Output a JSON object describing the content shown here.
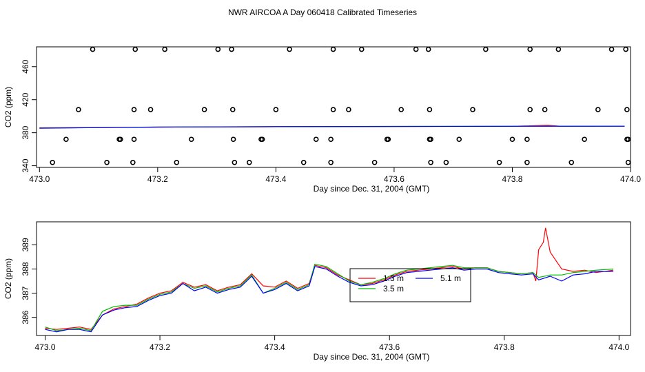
{
  "title": "NWR AIRCOA A  Day 060418  Calibrated Timeseries",
  "colors": {
    "red": "#ff0000",
    "green": "#00bb00",
    "blue": "#0000ff",
    "black": "#000000"
  },
  "chart_data": [
    {
      "type": "scatter",
      "xlabel": "Day since Dec. 31, 2004 (GMT)",
      "ylabel": "CO2 (ppm)",
      "xlim": [
        472.995,
        474.0
      ],
      "ylim": [
        338,
        484
      ],
      "xticks": [
        "473.0",
        "473.2",
        "473.4",
        "473.6",
        "473.8",
        "474.0"
      ],
      "yticks": [
        "340",
        "380",
        "420",
        "460"
      ],
      "series": [
        {
          "color": "#000000",
          "marker": "circle",
          "points": [
            [
              473.09,
              481
            ],
            [
              473.162,
              481
            ],
            [
              473.212,
              481
            ],
            [
              473.302,
              481
            ],
            [
              473.325,
              481
            ],
            [
              473.423,
              481
            ],
            [
              473.497,
              481
            ],
            [
              473.545,
              481
            ],
            [
              473.637,
              481
            ],
            [
              473.658,
              481
            ],
            [
              473.755,
              481
            ],
            [
              473.83,
              481
            ],
            [
              473.878,
              481
            ],
            [
              473.968,
              481
            ],
            [
              473.992,
              481
            ],
            [
              473.066,
              408
            ],
            [
              473.16,
              408
            ],
            [
              473.188,
              408
            ],
            [
              473.279,
              408
            ],
            [
              473.327,
              408
            ],
            [
              473.4,
              408
            ],
            [
              473.497,
              408
            ],
            [
              473.523,
              408
            ],
            [
              473.612,
              408
            ],
            [
              473.66,
              408
            ],
            [
              473.733,
              408
            ],
            [
              473.83,
              408
            ],
            [
              473.855,
              408
            ],
            [
              473.945,
              408
            ],
            [
              473.994,
              408
            ],
            [
              473.045,
              372
            ],
            [
              473.135,
              372
            ],
            [
              473.137,
              372
            ],
            [
              473.16,
              372
            ],
            [
              473.257,
              372
            ],
            [
              473.328,
              372
            ],
            [
              473.375,
              372
            ],
            [
              473.377,
              372
            ],
            [
              473.468,
              372
            ],
            [
              473.493,
              372
            ],
            [
              473.588,
              372
            ],
            [
              473.59,
              372
            ],
            [
              473.66,
              372
            ],
            [
              473.662,
              372
            ],
            [
              473.71,
              372
            ],
            [
              473.8,
              372
            ],
            [
              473.825,
              372
            ],
            [
              473.922,
              372
            ],
            [
              473.994,
              372
            ],
            [
              473.996,
              372
            ],
            [
              473.022,
              344
            ],
            [
              473.114,
              344
            ],
            [
              473.158,
              344
            ],
            [
              473.232,
              344
            ],
            [
              473.33,
              344
            ],
            [
              473.355,
              344
            ],
            [
              473.447,
              344
            ],
            [
              473.493,
              344
            ],
            [
              473.567,
              344
            ],
            [
              473.662,
              344
            ],
            [
              473.688,
              344
            ],
            [
              473.778,
              344
            ],
            [
              473.825,
              344
            ],
            [
              473.9,
              344
            ],
            [
              473.996,
              344
            ]
          ]
        },
        {
          "color": "#ff0000",
          "marker": "line",
          "points": [
            [
              473.0,
              386
            ],
            [
              473.2,
              386.8
            ],
            [
              473.4,
              387.3
            ],
            [
              473.6,
              387.6
            ],
            [
              473.8,
              387.8
            ],
            [
              473.86,
              389
            ],
            [
              473.88,
              388
            ],
            [
              473.99,
              387.9
            ]
          ]
        },
        {
          "color": "#00bb00",
          "marker": "line",
          "points": [
            [
              473.0,
              385.6
            ],
            [
              473.2,
              386.9
            ],
            [
              473.4,
              387.4
            ],
            [
              473.6,
              387.6
            ],
            [
              473.8,
              387.9
            ],
            [
              473.99,
              388
            ]
          ]
        },
        {
          "color": "#0000ff",
          "marker": "line",
          "points": [
            [
              473.0,
              385.5
            ],
            [
              473.2,
              386.8
            ],
            [
              473.4,
              387.3
            ],
            [
              473.6,
              387.5
            ],
            [
              473.8,
              387.8
            ],
            [
              473.99,
              387.9
            ]
          ]
        }
      ]
    },
    {
      "type": "line",
      "xlabel": "Day since Dec. 31, 2004 (GMT)",
      "ylabel": "CO2 (ppm)",
      "xlim": [
        472.985,
        474.02
      ],
      "ylim": [
        385.25,
        389.95
      ],
      "xticks": [
        "473.0",
        "473.2",
        "473.4",
        "473.6",
        "473.8",
        "474.0"
      ],
      "yticks": [
        "386",
        "387",
        "388",
        "389"
      ],
      "legend": {
        "position": "center",
        "entries": [
          {
            "label": "1.3 m",
            "color": "#ff0000"
          },
          {
            "label": "5.1 m",
            "color": "#0000ff"
          },
          {
            "label": "3.5 m",
            "color": "#00bb00"
          }
        ]
      },
      "series": [
        {
          "name": "1.3 m",
          "color": "#ff0000",
          "points": [
            [
              473.0,
              385.55
            ],
            [
              473.02,
              385.5
            ],
            [
              473.04,
              385.55
            ],
            [
              473.06,
              385.6
            ],
            [
              473.08,
              385.5
            ],
            [
              473.09,
              385.8
            ],
            [
              473.1,
              386.1
            ],
            [
              473.12,
              386.35
            ],
            [
              473.14,
              386.45
            ],
            [
              473.16,
              386.55
            ],
            [
              473.18,
              386.8
            ],
            [
              473.2,
              387.0
            ],
            [
              473.22,
              387.1
            ],
            [
              473.24,
              387.45
            ],
            [
              473.26,
              387.25
            ],
            [
              473.28,
              387.35
            ],
            [
              473.3,
              387.1
            ],
            [
              473.32,
              387.25
            ],
            [
              473.34,
              387.35
            ],
            [
              473.36,
              387.8
            ],
            [
              473.38,
              387.3
            ],
            [
              473.4,
              387.25
            ],
            [
              473.42,
              387.5
            ],
            [
              473.44,
              387.2
            ],
            [
              473.46,
              387.4
            ],
            [
              473.47,
              388.15
            ],
            [
              473.49,
              388.05
            ],
            [
              473.51,
              387.75
            ],
            [
              473.53,
              387.55
            ],
            [
              473.55,
              387.35
            ],
            [
              473.57,
              387.4
            ],
            [
              473.59,
              387.55
            ],
            [
              473.61,
              387.75
            ],
            [
              473.63,
              387.9
            ],
            [
              473.65,
              387.95
            ],
            [
              473.67,
              388.0
            ],
            [
              473.69,
              388.05
            ],
            [
              473.71,
              388.1
            ],
            [
              473.73,
              388.0
            ],
            [
              473.75,
              388.05
            ],
            [
              473.77,
              388.05
            ],
            [
              473.79,
              387.9
            ],
            [
              473.81,
              387.85
            ],
            [
              473.83,
              387.8
            ],
            [
              473.85,
              387.85
            ],
            [
              473.855,
              387.5
            ],
            [
              473.86,
              388.8
            ],
            [
              473.868,
              389.1
            ],
            [
              473.872,
              389.7
            ],
            [
              473.88,
              388.7
            ],
            [
              473.9,
              388.0
            ],
            [
              473.92,
              387.9
            ],
            [
              473.94,
              387.95
            ],
            [
              473.96,
              387.85
            ],
            [
              473.99,
              387.95
            ]
          ]
        },
        {
          "name": "3.5 m",
          "color": "#00bb00",
          "points": [
            [
              473.0,
              385.6
            ],
            [
              473.02,
              385.45
            ],
            [
              473.04,
              385.5
            ],
            [
              473.06,
              385.55
            ],
            [
              473.08,
              385.45
            ],
            [
              473.09,
              385.85
            ],
            [
              473.1,
              386.25
            ],
            [
              473.12,
              386.45
            ],
            [
              473.14,
              386.5
            ],
            [
              473.16,
              386.5
            ],
            [
              473.18,
              386.75
            ],
            [
              473.2,
              386.95
            ],
            [
              473.22,
              387.05
            ],
            [
              473.24,
              387.4
            ],
            [
              473.26,
              387.2
            ],
            [
              473.28,
              387.3
            ],
            [
              473.3,
              387.05
            ],
            [
              473.32,
              387.2
            ],
            [
              473.34,
              387.3
            ],
            [
              473.36,
              387.75
            ],
            [
              473.38,
              387.0
            ],
            [
              473.4,
              387.2
            ],
            [
              473.42,
              387.45
            ],
            [
              473.44,
              387.15
            ],
            [
              473.46,
              387.35
            ],
            [
              473.47,
              388.2
            ],
            [
              473.49,
              388.1
            ],
            [
              473.51,
              387.8
            ],
            [
              473.53,
              387.5
            ],
            [
              473.55,
              387.35
            ],
            [
              473.57,
              387.45
            ],
            [
              473.59,
              387.6
            ],
            [
              473.61,
              387.8
            ],
            [
              473.63,
              387.95
            ],
            [
              473.65,
              388.0
            ],
            [
              473.67,
              388.05
            ],
            [
              473.69,
              388.1
            ],
            [
              473.71,
              388.15
            ],
            [
              473.73,
              388.05
            ],
            [
              473.75,
              388.05
            ],
            [
              473.77,
              388.05
            ],
            [
              473.79,
              387.9
            ],
            [
              473.81,
              387.85
            ],
            [
              473.83,
              387.8
            ],
            [
              473.85,
              387.85
            ],
            [
              473.86,
              387.65
            ],
            [
              473.88,
              387.75
            ],
            [
              473.9,
              387.75
            ],
            [
              473.92,
              387.85
            ],
            [
              473.94,
              387.9
            ],
            [
              473.96,
              387.95
            ],
            [
              473.99,
              388.0
            ]
          ]
        },
        {
          "name": "5.1 m",
          "color": "#0000ff",
          "points": [
            [
              473.0,
              385.5
            ],
            [
              473.02,
              385.4
            ],
            [
              473.04,
              385.5
            ],
            [
              473.06,
              385.5
            ],
            [
              473.08,
              385.4
            ],
            [
              473.09,
              385.75
            ],
            [
              473.1,
              386.1
            ],
            [
              473.12,
              386.3
            ],
            [
              473.14,
              386.4
            ],
            [
              473.16,
              386.45
            ],
            [
              473.18,
              386.7
            ],
            [
              473.2,
              386.9
            ],
            [
              473.22,
              387.0
            ],
            [
              473.24,
              387.4
            ],
            [
              473.26,
              387.1
            ],
            [
              473.28,
              387.25
            ],
            [
              473.3,
              387.0
            ],
            [
              473.32,
              387.15
            ],
            [
              473.34,
              387.25
            ],
            [
              473.36,
              387.7
            ],
            [
              473.38,
              387.0
            ],
            [
              473.4,
              387.15
            ],
            [
              473.42,
              387.4
            ],
            [
              473.44,
              387.1
            ],
            [
              473.46,
              387.3
            ],
            [
              473.47,
              388.1
            ],
            [
              473.49,
              388.0
            ],
            [
              473.51,
              387.7
            ],
            [
              473.53,
              387.45
            ],
            [
              473.55,
              387.3
            ],
            [
              473.57,
              387.35
            ],
            [
              473.59,
              387.5
            ],
            [
              473.61,
              387.7
            ],
            [
              473.63,
              387.85
            ],
            [
              473.65,
              387.9
            ],
            [
              473.67,
              387.95
            ],
            [
              473.69,
              388.0
            ],
            [
              473.71,
              388.05
            ],
            [
              473.73,
              387.95
            ],
            [
              473.75,
              388.0
            ],
            [
              473.77,
              388.0
            ],
            [
              473.79,
              387.85
            ],
            [
              473.81,
              387.8
            ],
            [
              473.83,
              387.75
            ],
            [
              473.85,
              387.8
            ],
            [
              473.86,
              387.55
            ],
            [
              473.88,
              387.7
            ],
            [
              473.9,
              387.5
            ],
            [
              473.92,
              387.75
            ],
            [
              473.94,
              387.8
            ],
            [
              473.96,
              387.9
            ],
            [
              473.99,
              387.9
            ]
          ]
        }
      ]
    }
  ]
}
